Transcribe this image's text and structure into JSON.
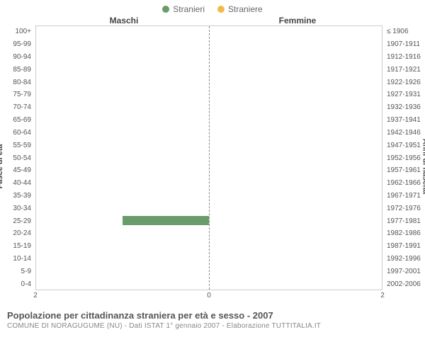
{
  "legend": {
    "items": [
      {
        "label": "Stranieri",
        "color": "#6a9b6a"
      },
      {
        "label": "Straniere",
        "color": "#f2b84b"
      }
    ]
  },
  "headers": {
    "left": "Maschi",
    "right": "Femmine"
  },
  "axis_titles": {
    "left": "Fasce di età",
    "right": "Anni di nascita"
  },
  "x_axis": {
    "max": 2,
    "ticks": [
      2,
      0,
      2
    ]
  },
  "age_bands": [
    {
      "age": "100+",
      "years": "≤ 1906",
      "male": 0,
      "female": 0
    },
    {
      "age": "95-99",
      "years": "1907-1911",
      "male": 0,
      "female": 0
    },
    {
      "age": "90-94",
      "years": "1912-1916",
      "male": 0,
      "female": 0
    },
    {
      "age": "85-89",
      "years": "1917-1921",
      "male": 0,
      "female": 0
    },
    {
      "age": "80-84",
      "years": "1922-1926",
      "male": 0,
      "female": 0
    },
    {
      "age": "75-79",
      "years": "1927-1931",
      "male": 0,
      "female": 0
    },
    {
      "age": "70-74",
      "years": "1932-1936",
      "male": 0,
      "female": 0
    },
    {
      "age": "65-69",
      "years": "1937-1941",
      "male": 0,
      "female": 0
    },
    {
      "age": "60-64",
      "years": "1942-1946",
      "male": 0,
      "female": 0
    },
    {
      "age": "55-59",
      "years": "1947-1951",
      "male": 0,
      "female": 0
    },
    {
      "age": "50-54",
      "years": "1952-1956",
      "male": 0,
      "female": 0
    },
    {
      "age": "45-49",
      "years": "1957-1961",
      "male": 0,
      "female": 0
    },
    {
      "age": "40-44",
      "years": "1962-1966",
      "male": 0,
      "female": 0
    },
    {
      "age": "35-39",
      "years": "1967-1971",
      "male": 0,
      "female": 0
    },
    {
      "age": "30-34",
      "years": "1972-1976",
      "male": 0,
      "female": 0
    },
    {
      "age": "25-29",
      "years": "1977-1981",
      "male": 1,
      "female": 0
    },
    {
      "age": "20-24",
      "years": "1982-1986",
      "male": 0,
      "female": 0
    },
    {
      "age": "15-19",
      "years": "1987-1991",
      "male": 0,
      "female": 0
    },
    {
      "age": "10-14",
      "years": "1992-1996",
      "male": 0,
      "female": 0
    },
    {
      "age": "5-9",
      "years": "1997-2001",
      "male": 0,
      "female": 0
    },
    {
      "age": "0-4",
      "years": "2002-2006",
      "male": 0,
      "female": 0
    }
  ],
  "colors": {
    "male_bar": "#6a9b6a",
    "female_bar": "#f2b84b",
    "grid": "#cccccc",
    "center_line": "#888888"
  },
  "footer": {
    "title": "Popolazione per cittadinanza straniera per età e sesso - 2007",
    "subtitle": "COMUNE DI NORAGUGUME (NU) - Dati ISTAT 1° gennaio 2007 - Elaborazione TUTTITALIA.IT"
  }
}
